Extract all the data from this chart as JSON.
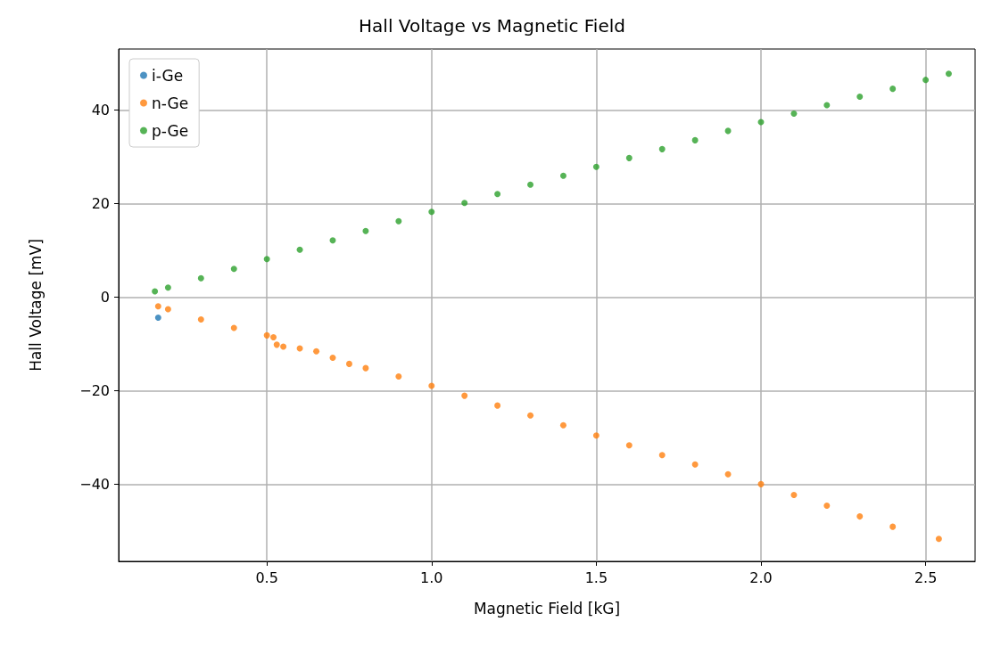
{
  "chart_data": {
    "type": "scatter",
    "title": "Hall Voltage vs Magnetic Field",
    "xlabel": "Magnetic Field [kG]",
    "ylabel": "Hall Voltage [mV]",
    "xlim": [
      0.05,
      2.65
    ],
    "xticks": [
      0.5,
      {
        "value": 1,
        "label": "1.0"
      },
      1.5,
      {
        "value": 2,
        "label": "2.0"
      },
      2.5
    ],
    "ylim": [
      -56.5,
      53
    ],
    "yticks": [
      {
        "value": -40,
        "label": "−40"
      },
      {
        "value": -20,
        "label": "−20"
      },
      0,
      20,
      40
    ],
    "grid": true,
    "legend": "top left",
    "marker": "circle",
    "series": [
      {
        "name": "i-Ge",
        "color": "#1f77b4",
        "x": [
          0.17
        ],
        "values": [
          -4.4
        ]
      },
      {
        "name": "n-Ge",
        "color": "#ff7f0e",
        "x": [
          0.17,
          0.2,
          0.3,
          0.4,
          0.5,
          0.52,
          0.53,
          0.55,
          0.6,
          0.65,
          0.7,
          0.75,
          0.8,
          0.9,
          1.0,
          1.1,
          1.2,
          1.3,
          1.4,
          1.5,
          1.6,
          1.7,
          1.8,
          1.9,
          2.0,
          2.1,
          2.2,
          2.3,
          2.4,
          2.54
        ],
        "values": [
          -2.0,
          -2.6,
          -4.8,
          -6.6,
          -8.2,
          -8.6,
          -10.2,
          -10.6,
          -11.0,
          -11.6,
          -13.0,
          -14.3,
          -15.2,
          -17.0,
          -19.0,
          -21.1,
          -23.2,
          -25.3,
          -27.4,
          -29.6,
          -31.7,
          -33.8,
          -35.8,
          -37.9,
          -40.0,
          -42.3,
          -44.6,
          -46.9,
          -49.1,
          -51.7
        ]
      },
      {
        "name": "p-Ge",
        "color": "#2ca02c",
        "x": [
          0.16,
          0.2,
          0.3,
          0.4,
          0.5,
          0.6,
          0.7,
          0.8,
          0.9,
          1.0,
          1.1,
          1.2,
          1.3,
          1.4,
          1.5,
          1.6,
          1.7,
          1.8,
          1.9,
          2.0,
          2.1,
          2.2,
          2.3,
          2.4,
          2.5,
          2.57
        ],
        "values": [
          1.2,
          2.0,
          4.0,
          6.0,
          8.1,
          10.1,
          12.1,
          14.1,
          16.2,
          18.2,
          20.1,
          22.0,
          24.0,
          25.9,
          27.8,
          29.7,
          31.6,
          33.5,
          35.5,
          37.4,
          39.2,
          41.0,
          42.8,
          44.5,
          46.4,
          47.7
        ]
      }
    ]
  }
}
